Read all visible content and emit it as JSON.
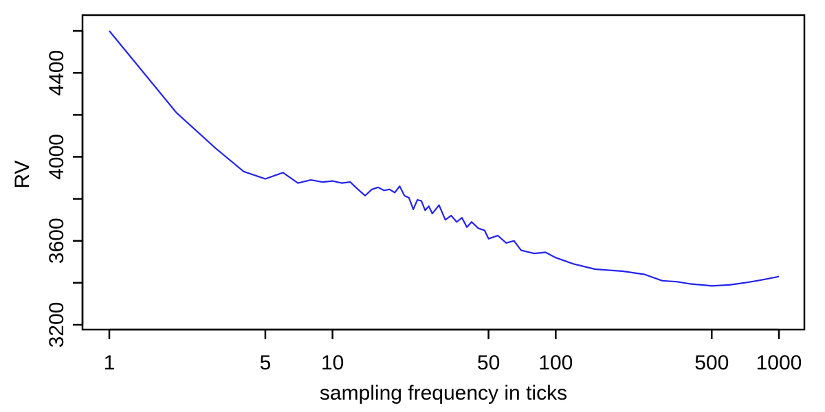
{
  "chart_data": {
    "type": "line",
    "title": "",
    "xlabel": "sampling frequency in ticks",
    "ylabel": "RV",
    "x_scale": "log",
    "xlim": [
      1,
      1000
    ],
    "ylim": [
      3200,
      4600
    ],
    "x_ticks": [
      1,
      5,
      10,
      50,
      100,
      500,
      1000
    ],
    "x_tick_labels": [
      "1",
      "5",
      "10",
      "50",
      "100",
      "500",
      "1000"
    ],
    "y_ticks": [
      3200,
      3400,
      3600,
      3800,
      4000,
      4200,
      4400,
      4600
    ],
    "y_tick_labels": [
      "3200",
      "",
      "3600",
      "",
      "4000",
      "",
      "4400",
      ""
    ],
    "grid": false,
    "legend": "none",
    "series": [
      {
        "color": "#2222ee",
        "x": [
          1,
          2,
          3,
          4,
          5,
          6,
          7,
          8,
          9,
          10,
          11,
          12,
          13,
          14,
          15,
          16,
          17,
          18,
          19,
          20,
          21,
          22,
          23,
          24,
          25,
          26,
          27,
          28,
          30,
          32,
          34,
          36,
          38,
          40,
          42,
          45,
          48,
          50,
          55,
          60,
          65,
          70,
          80,
          90,
          100,
          120,
          150,
          200,
          250,
          300,
          350,
          400,
          450,
          500,
          600,
          700,
          800,
          900,
          1000
        ],
        "y": [
          4600,
          4210,
          4040,
          3930,
          3895,
          3925,
          3875,
          3890,
          3880,
          3885,
          3875,
          3880,
          3845,
          3815,
          3845,
          3855,
          3840,
          3845,
          3830,
          3860,
          3815,
          3805,
          3750,
          3795,
          3790,
          3745,
          3765,
          3730,
          3770,
          3700,
          3720,
          3690,
          3710,
          3665,
          3690,
          3660,
          3650,
          3610,
          3625,
          3590,
          3600,
          3555,
          3540,
          3545,
          3520,
          3490,
          3465,
          3455,
          3440,
          3410,
          3405,
          3395,
          3390,
          3385,
          3390,
          3400,
          3410,
          3420,
          3430
        ]
      }
    ]
  }
}
